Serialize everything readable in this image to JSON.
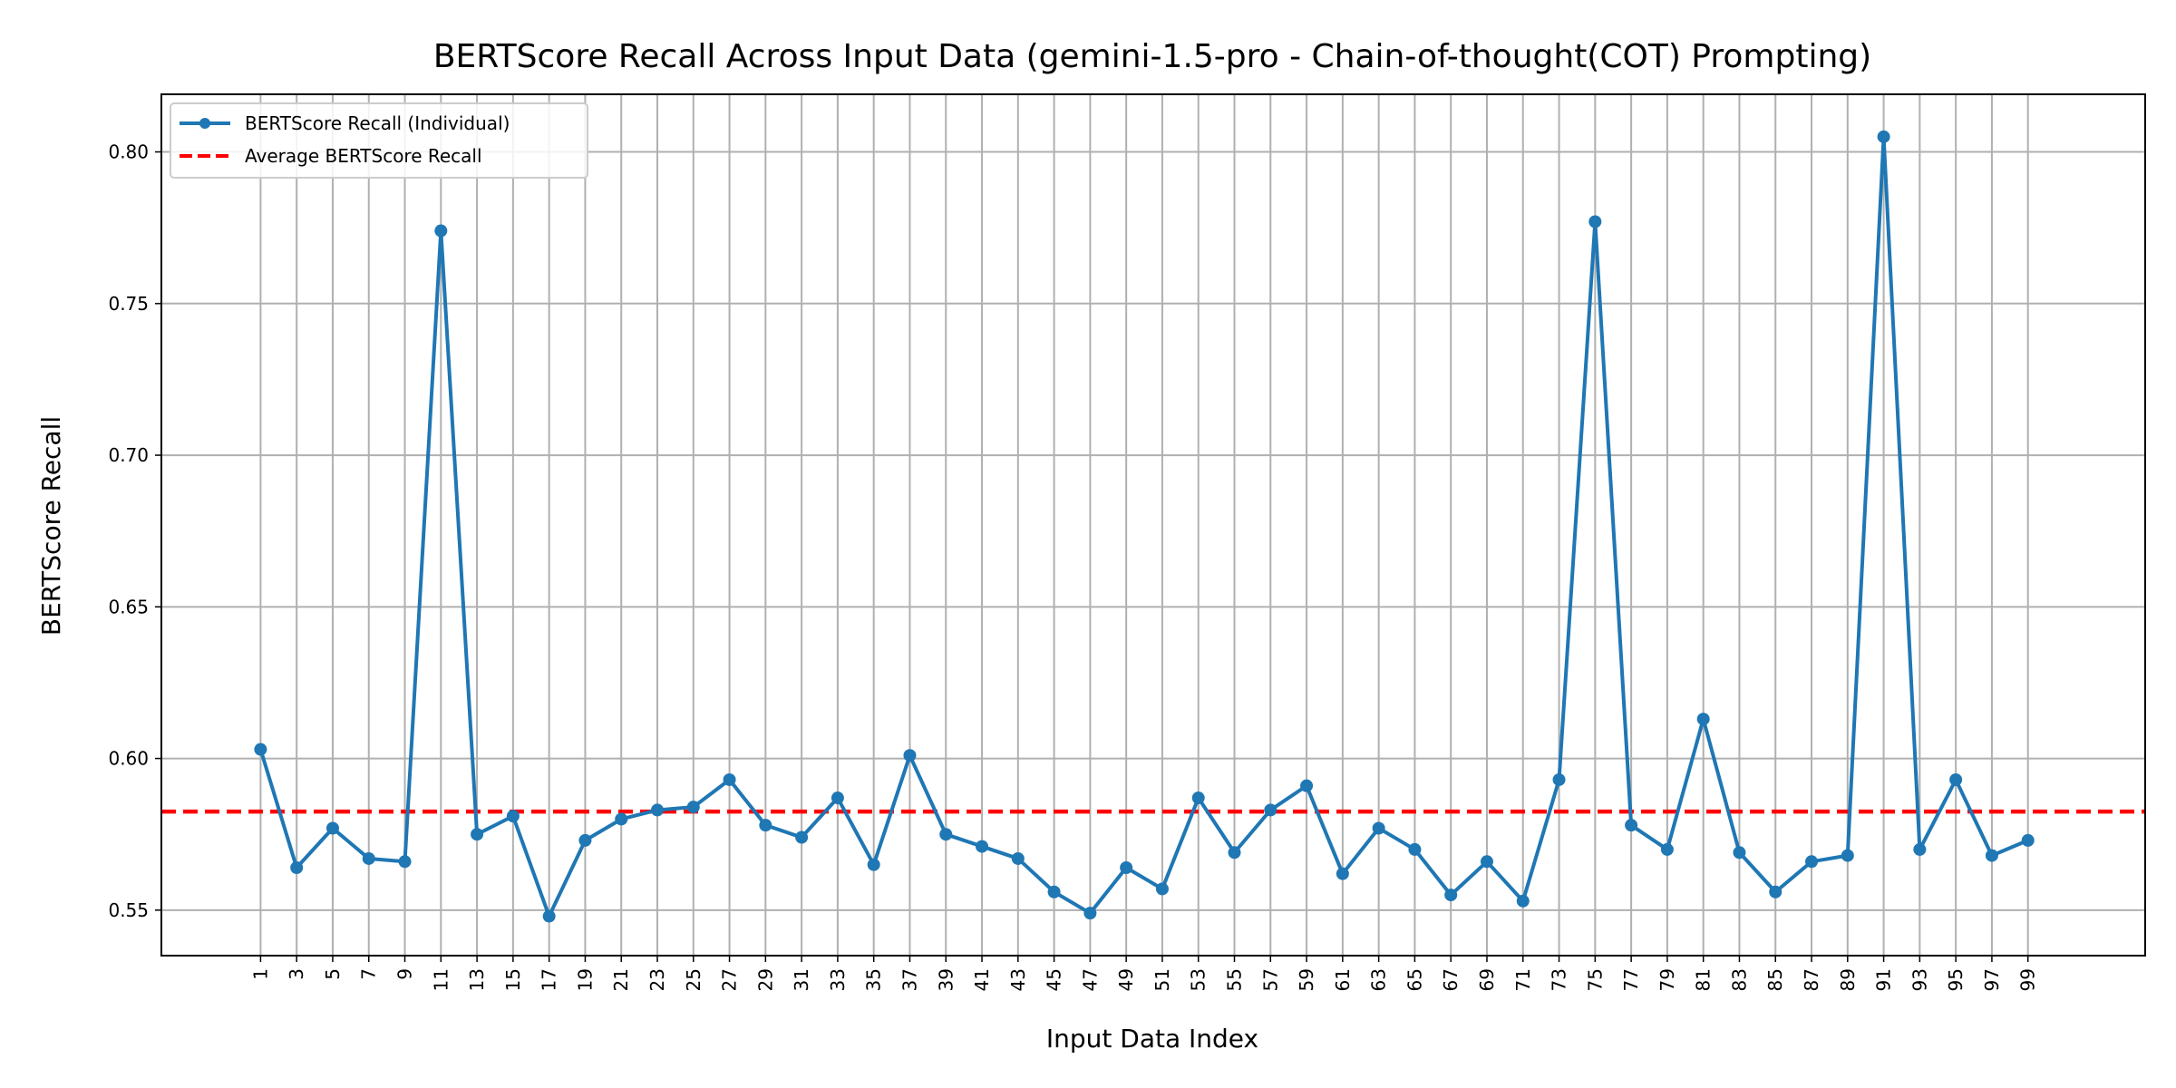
{
  "chart_data": {
    "type": "line",
    "title": "BERTScore Recall Across Input Data (gemini-1.5-pro - Chain-of-thought(COT) Prompting)",
    "xlabel": "Input Data Index",
    "ylabel": "BERTScore Recall",
    "x": [
      1,
      3,
      5,
      7,
      9,
      11,
      13,
      15,
      17,
      19,
      21,
      23,
      25,
      27,
      29,
      31,
      33,
      35,
      37,
      39,
      41,
      43,
      45,
      47,
      49,
      51,
      53,
      55,
      57,
      59,
      61,
      63,
      65,
      67,
      69,
      71,
      73,
      75,
      77,
      79,
      81,
      83,
      85,
      87,
      89,
      91,
      93,
      95,
      97,
      99
    ],
    "xticks": [
      "1",
      "3",
      "5",
      "7",
      "9",
      "11",
      "13",
      "15",
      "17",
      "19",
      "21",
      "23",
      "25",
      "27",
      "29",
      "31",
      "33",
      "35",
      "37",
      "39",
      "41",
      "43",
      "45",
      "47",
      "49",
      "51",
      "53",
      "55",
      "57",
      "59",
      "61",
      "63",
      "65",
      "67",
      "69",
      "71",
      "73",
      "75",
      "77",
      "79",
      "81",
      "83",
      "85",
      "87",
      "89",
      "91",
      "93",
      "95",
      "97",
      "99"
    ],
    "xlim": [
      -4.5,
      105.5
    ],
    "ylim": [
      0.535,
      0.819
    ],
    "yticks": [
      0.55,
      0.6,
      0.65,
      0.7,
      0.75,
      0.8
    ],
    "ytick_labels": [
      "0.55",
      "0.60",
      "0.65",
      "0.70",
      "0.75",
      "0.80"
    ],
    "grid": true,
    "legend_position": "top-left",
    "series": [
      {
        "name": "BERTScore Recall (Individual)",
        "color": "#1f77b4",
        "style": "solid",
        "marker": "circle",
        "values": [
          0.603,
          0.564,
          0.577,
          0.567,
          0.566,
          0.774,
          0.575,
          0.581,
          0.548,
          0.573,
          0.58,
          0.583,
          0.584,
          0.593,
          0.578,
          0.574,
          0.587,
          0.565,
          0.601,
          0.575,
          0.571,
          0.567,
          0.556,
          0.549,
          0.564,
          0.557,
          0.587,
          0.569,
          0.583,
          0.591,
          0.562,
          0.577,
          0.57,
          0.555,
          0.566,
          0.553,
          0.593,
          0.777,
          0.578,
          0.57,
          0.613,
          0.569,
          0.556,
          0.566,
          0.568,
          0.805,
          0.57,
          0.593,
          0.568,
          0.573
        ]
      },
      {
        "name": "Average BERTScore Recall",
        "color": "#ff0000",
        "style": "dashed",
        "constant": 0.5825
      }
    ]
  }
}
